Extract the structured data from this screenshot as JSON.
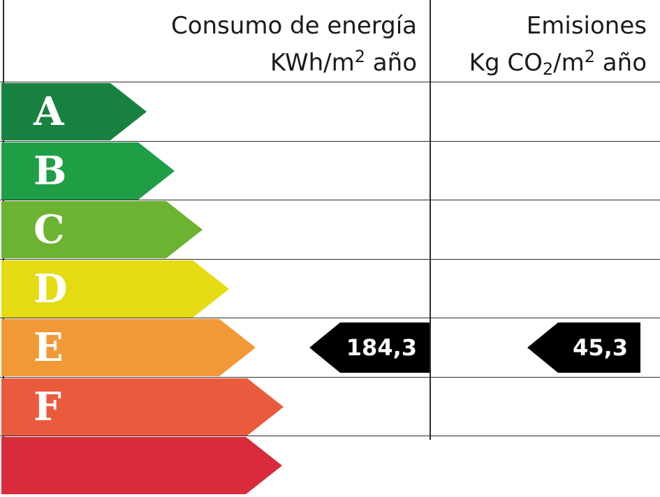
{
  "header": {
    "energy": {
      "line1": "Consumo de energía",
      "unit_pre": "KWh/m",
      "unit_sup": "2",
      "unit_post": " año"
    },
    "emissions": {
      "line1": "Emisiones",
      "unit_pre": "Kg CO",
      "unit_sub": "2",
      "unit_mid": "/m",
      "unit_sup": "2",
      "unit_post": " año"
    }
  },
  "ratings": [
    {
      "letter": "A",
      "color": "#17823f"
    },
    {
      "letter": "B",
      "color": "#1f9e46"
    },
    {
      "letter": "C",
      "color": "#6bb331"
    },
    {
      "letter": "D",
      "color": "#e4db13"
    },
    {
      "letter": "E",
      "color": "#f19937"
    },
    {
      "letter": "F",
      "color": "#ea5a3c"
    },
    {
      "letter": "",
      "color": "#d92b3a"
    }
  ],
  "current_rating": "E",
  "values": {
    "energy": "184,3",
    "emissions": "45,3"
  },
  "marker_color": "#000000"
}
